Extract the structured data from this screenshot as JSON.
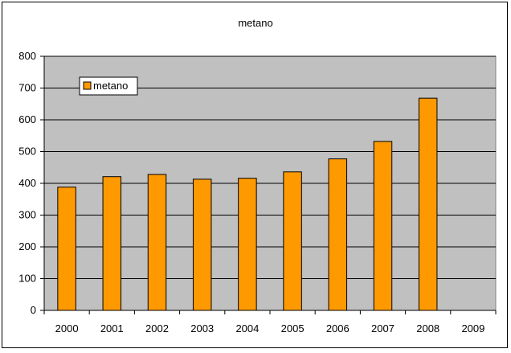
{
  "chart_data": {
    "type": "bar",
    "title": "metano",
    "categories": [
      "2000",
      "2001",
      "2002",
      "2003",
      "2004",
      "2005",
      "2006",
      "2007",
      "2008",
      "2009"
    ],
    "series": [
      {
        "name": "metano",
        "values": [
          388,
          421,
          428,
          413,
          416,
          436,
          477,
          532,
          668,
          null
        ]
      }
    ],
    "ylim": [
      0,
      800
    ],
    "yticks": [
      0,
      100,
      200,
      300,
      400,
      500,
      600,
      700,
      800
    ],
    "grid": true,
    "legend": "top-left",
    "colors": {
      "bar": "#FF9900",
      "bar_edge": "#000000",
      "plot_bg": "#C0C0C0",
      "grid": "#000000"
    }
  }
}
